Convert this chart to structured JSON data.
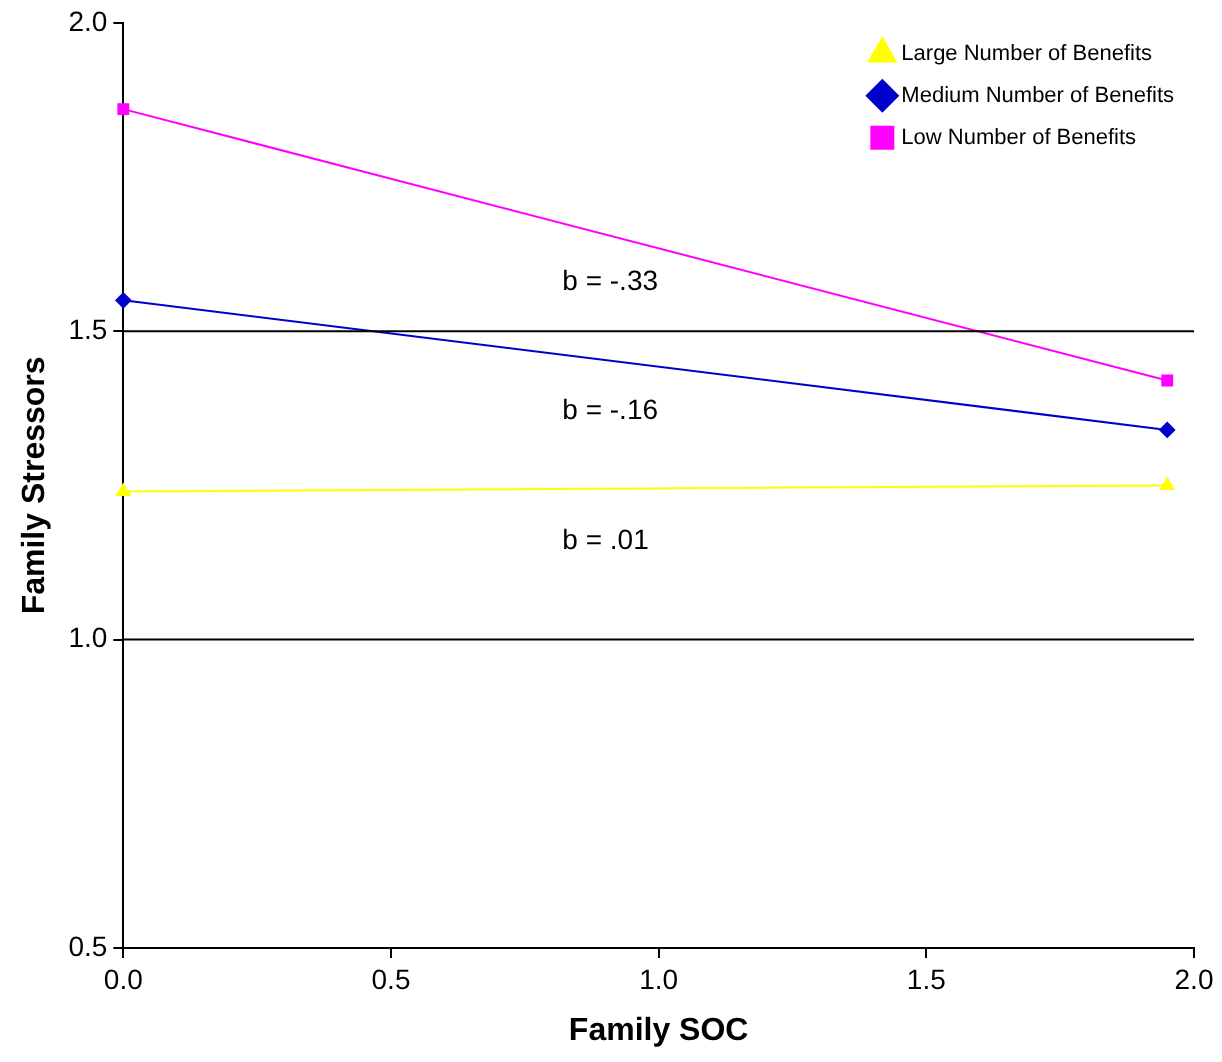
{
  "chart_data": {
    "type": "line",
    "xlabel": "Family SOC",
    "ylabel": "Family Stressors",
    "xlim": [
      0,
      2
    ],
    "xticks": [
      {
        "value": 0,
        "label": "0.0"
      },
      {
        "value": 0.5,
        "label": "0.5"
      },
      {
        "value": 1,
        "label": "1.0"
      },
      {
        "value": 1.5,
        "label": "1.5"
      },
      {
        "value": 2,
        "label": "2.0"
      }
    ],
    "ylim": [
      0.5,
      2
    ],
    "yticks": [
      {
        "value": 0.5,
        "label": "0.5"
      },
      {
        "value": 1,
        "label": "1.0"
      },
      {
        "value": 1.5,
        "label": "1.5"
      },
      {
        "value": 2,
        "label": "2.0"
      }
    ],
    "grid": false,
    "legend": "top right",
    "line_style": "solid",
    "ref_lines": [
      {
        "axis": "y",
        "value": 1.5,
        "color": "#000000"
      },
      {
        "axis": "y",
        "value": 1.0,
        "color": "#000000"
      }
    ],
    "annotations": [
      "b = -.33",
      "b = -.16",
      "b = .01"
    ],
    "x": [
      0,
      1.95
    ],
    "series": [
      {
        "name": "Large Number of Benefits",
        "color": "#ffff00",
        "marker": "triangle",
        "values": [
          1.24,
          1.25
        ]
      },
      {
        "name": "Medium Number of Benefits",
        "color": "#0000cc",
        "marker": "diamond",
        "values": [
          1.55,
          1.34
        ]
      },
      {
        "name": "Low Number of Benefits",
        "color": "#ff00ff",
        "marker": "square",
        "values": [
          1.86,
          1.42
        ]
      }
    ]
  }
}
